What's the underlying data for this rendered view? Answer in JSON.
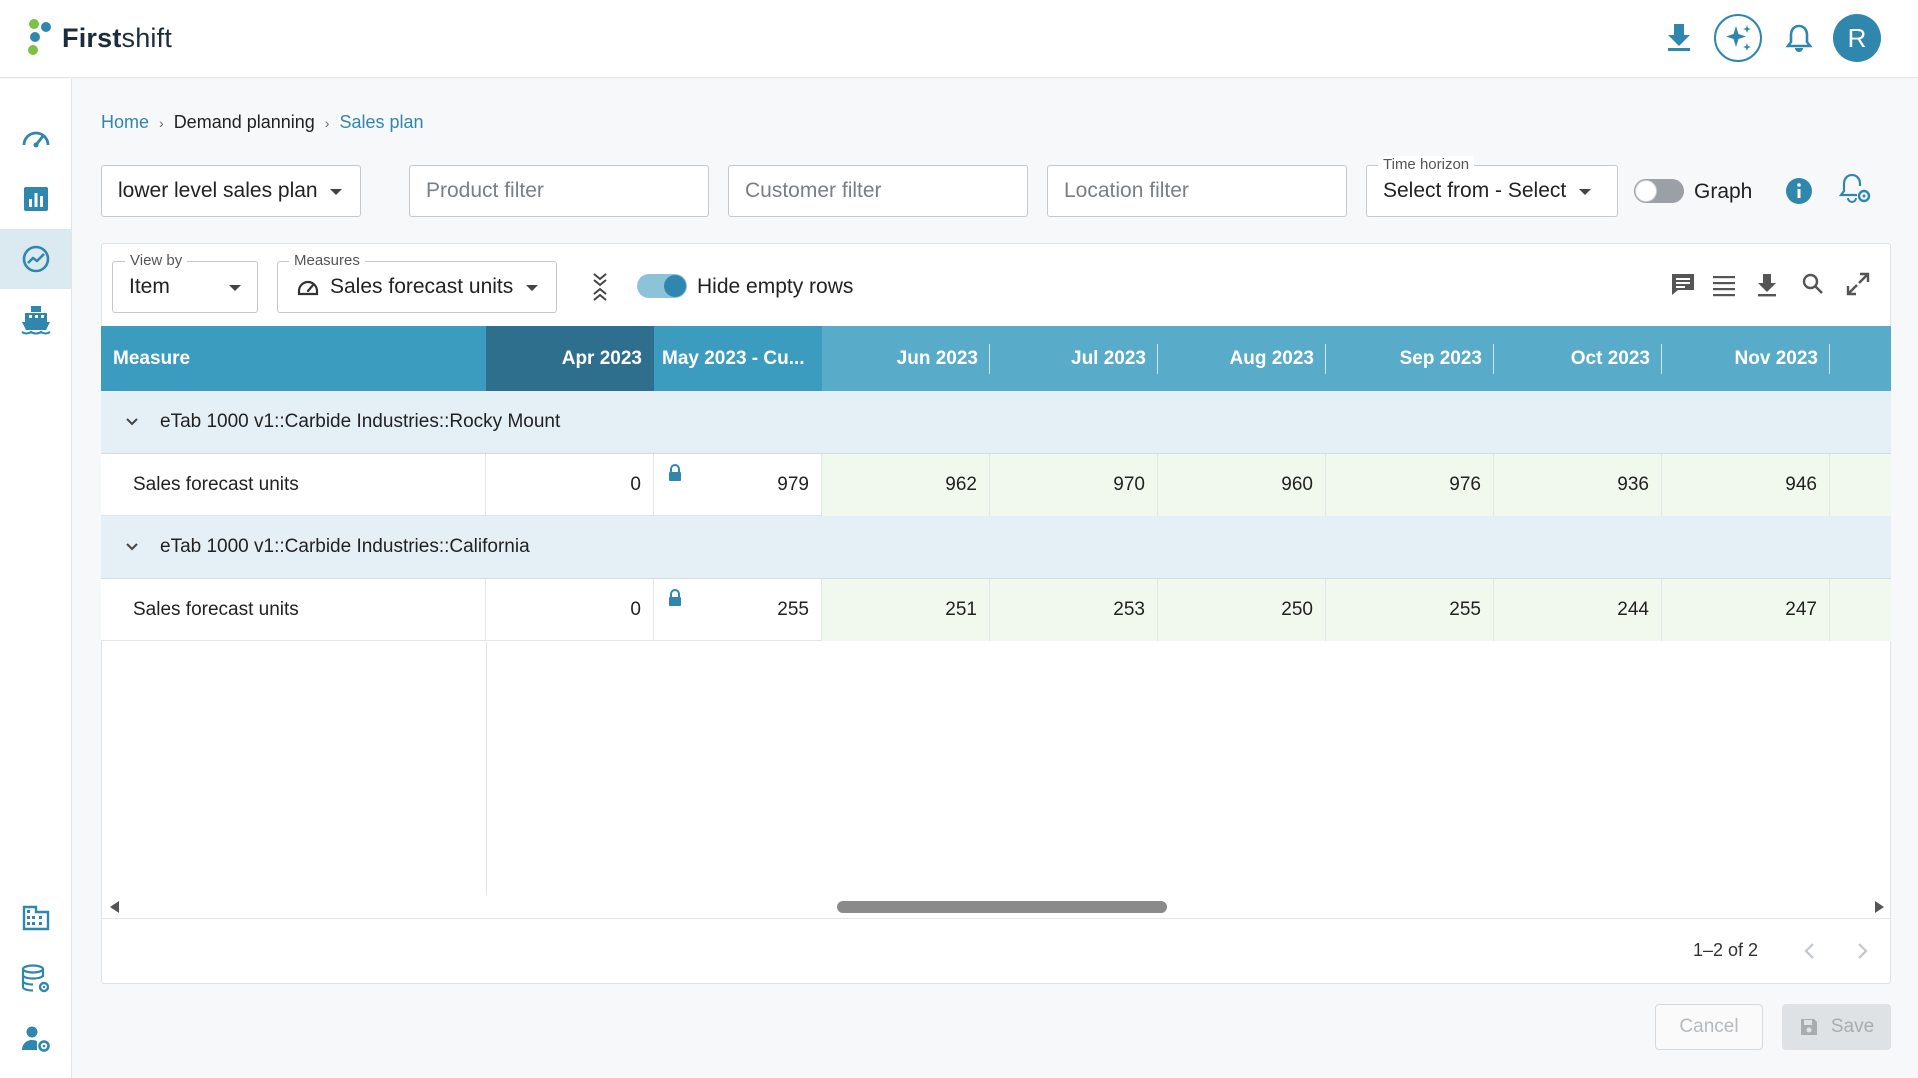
{
  "app": {
    "brand_bold": "First",
    "brand_light": "shift",
    "avatar_letter": "R"
  },
  "topbar": {
    "icons": [
      "download-icon",
      "ai-sparkle-icon",
      "bell-icon"
    ]
  },
  "sidebar": {
    "items": [
      "dashboard-icon",
      "bar-chart-icon",
      "trending-icon",
      "ship-icon",
      "building-icon",
      "database-settings-icon",
      "user-settings-icon"
    ],
    "active": "trending-icon"
  },
  "breadcrumb": {
    "home": "Home",
    "parent": "Demand planning",
    "current": "Sales plan"
  },
  "filters": {
    "plan_select": "lower level sales plan",
    "product_placeholder": "Product filter",
    "customer_placeholder": "Customer filter",
    "location_placeholder": "Location filter",
    "time_horizon_label": "Time horizon",
    "time_horizon_value": "Select from - Select",
    "graph_label": "Graph",
    "graph_on": false
  },
  "toolbar": {
    "view_by_label": "View by",
    "view_by_value": "Item",
    "measures_label": "Measures",
    "measures_value": "Sales forecast units",
    "hide_empty_label": "Hide empty rows",
    "hide_empty_on": true
  },
  "grid": {
    "measure_header": "Measure",
    "columns": [
      "Apr 2023",
      "May 2023 - Cu...",
      "Jun 2023",
      "Jul 2023",
      "Aug 2023",
      "Sep 2023",
      "Oct 2023",
      "Nov 2023"
    ],
    "groups": [
      {
        "title": "eTab 1000 v1::Carbide Industries::Rocky Mount",
        "measure": "Sales forecast units",
        "values": [
          "0",
          "979",
          "962",
          "970",
          "960",
          "976",
          "936",
          "946"
        ]
      },
      {
        "title": "eTab 1000 v1::Carbide Industries::California",
        "measure": "Sales forecast units",
        "values": [
          "0",
          "255",
          "251",
          "253",
          "250",
          "255",
          "244",
          "247"
        ]
      }
    ]
  },
  "pagination": {
    "range": "1–2 of 2"
  },
  "actions": {
    "cancel": "Cancel",
    "save": "Save"
  },
  "colors": {
    "accent": "#2f87ad",
    "header": "#58abc9",
    "header_dark": "#2d6f8c",
    "header_mid": "#3b9cbf"
  }
}
